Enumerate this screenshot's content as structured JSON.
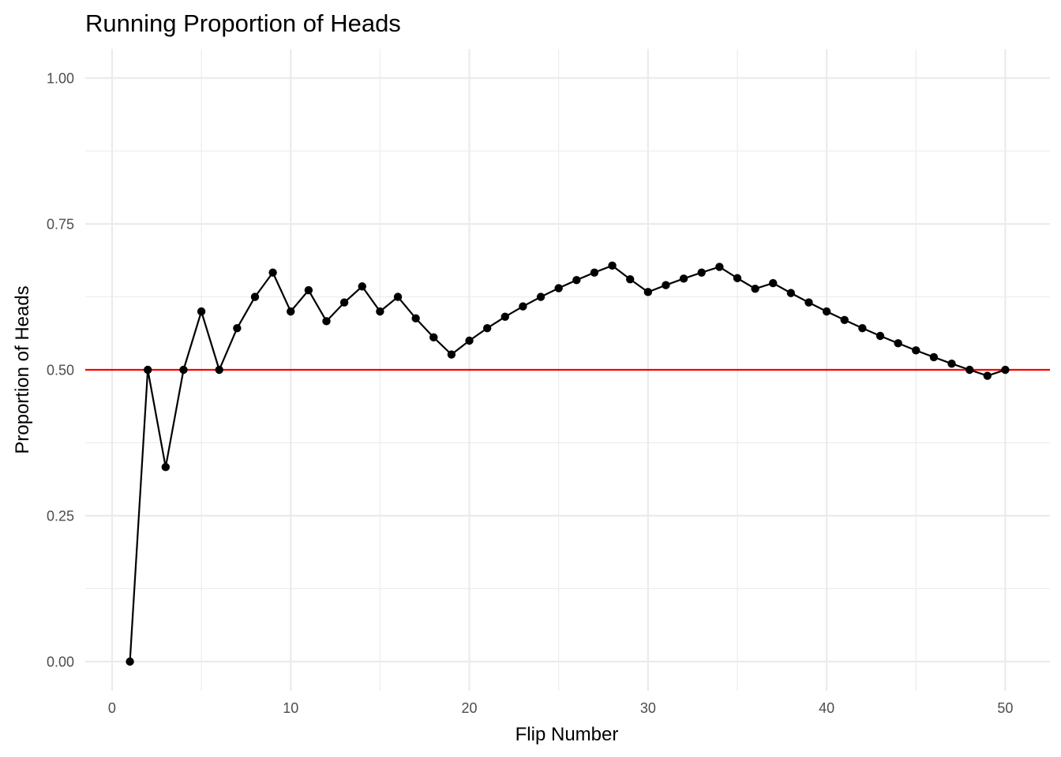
{
  "chart_data": {
    "type": "line",
    "title": "Running Proportion of Heads",
    "xlabel": "Flip Number",
    "ylabel": "Proportion of Heads",
    "xlim": [
      -1.5,
      52.5
    ],
    "ylim": [
      -0.05,
      1.05
    ],
    "x_major_ticks": [
      0,
      10,
      20,
      30,
      40,
      50
    ],
    "x_minor_ticks": [
      5,
      15,
      25,
      35,
      45
    ],
    "y_major_ticks": [
      0,
      0.25,
      0.5,
      0.75,
      1.0
    ],
    "y_minor_ticks": [
      0.125,
      0.375,
      0.625,
      0.875
    ],
    "x_tick_labels": [
      "0",
      "10",
      "20",
      "30",
      "40",
      "50"
    ],
    "y_tick_labels": [
      "0.00",
      "0.25",
      "0.50",
      "0.75",
      "1.00"
    ],
    "grid": true,
    "reference_line": {
      "y": 0.5,
      "color": "#ff0000"
    },
    "series": [
      {
        "color": "#000000",
        "x": [
          1,
          2,
          3,
          4,
          5,
          6,
          7,
          8,
          9,
          10,
          11,
          12,
          13,
          14,
          15,
          16,
          17,
          18,
          19,
          20,
          21,
          22,
          23,
          24,
          25,
          26,
          27,
          28,
          29,
          30,
          31,
          32,
          33,
          34,
          35,
          36,
          37,
          38,
          39,
          40,
          41,
          42,
          43,
          44,
          45,
          46,
          47,
          48,
          49,
          50
        ],
        "values": [
          0.0,
          0.5,
          0.3333,
          0.5,
          0.6,
          0.5,
          0.5714,
          0.625,
          0.6667,
          0.6,
          0.6364,
          0.5833,
          0.6154,
          0.6429,
          0.6,
          0.625,
          0.5882,
          0.5556,
          0.5263,
          0.55,
          0.5714,
          0.5909,
          0.6087,
          0.625,
          0.64,
          0.6538,
          0.6667,
          0.6786,
          0.6552,
          0.6333,
          0.6452,
          0.6563,
          0.6667,
          0.6765,
          0.6571,
          0.6389,
          0.6486,
          0.6316,
          0.6154,
          0.6,
          0.5854,
          0.5714,
          0.5581,
          0.5455,
          0.5333,
          0.5217,
          0.5106,
          0.5,
          0.4898,
          0.5
        ]
      }
    ]
  }
}
